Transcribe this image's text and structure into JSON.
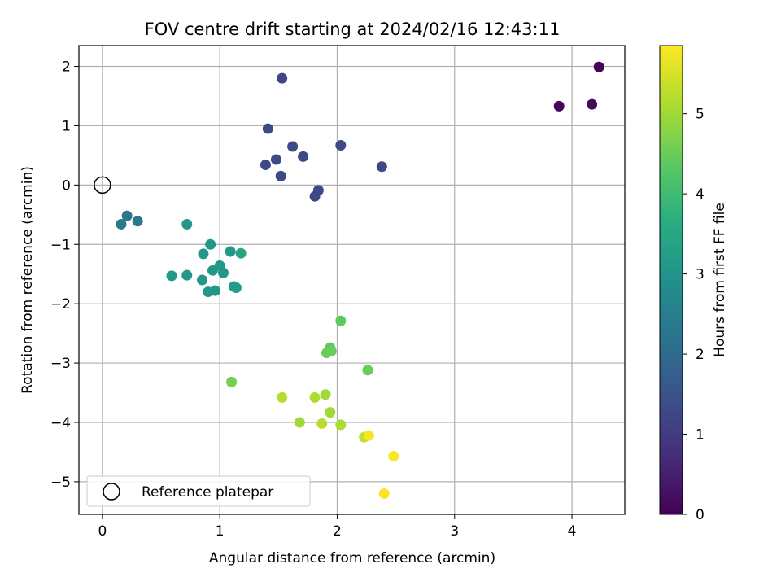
{
  "chart_data": {
    "type": "scatter",
    "title": "FOV centre drift starting at 2024/02/16 12:43:11",
    "xlabel": "Angular distance from reference (arcmin)",
    "ylabel": "Rotation from reference (arcmin)",
    "colorbar_label": "Hours from first FF file",
    "colormap": "viridis",
    "xlim": [
      -0.2,
      4.45
    ],
    "ylim": [
      -5.55,
      2.35
    ],
    "clim": [
      0,
      5.85
    ],
    "x_ticks": [
      0,
      1,
      2,
      3,
      4
    ],
    "y_ticks": [
      -5,
      -4,
      -3,
      -2,
      -1,
      0,
      1,
      2
    ],
    "colorbar_ticks": [
      0,
      1,
      2,
      3,
      4,
      5
    ],
    "grid": true,
    "legend_position": "lower-left",
    "reference": {
      "label": "Reference platepar",
      "x": 0,
      "y": 0
    },
    "points": [
      {
        "x": 4.23,
        "y": 1.99,
        "t": 0.05
      },
      {
        "x": 3.89,
        "y": 1.33,
        "t": 0.1
      },
      {
        "x": 4.17,
        "y": 1.36,
        "t": 0.15
      },
      {
        "x": 1.53,
        "y": 1.8,
        "t": 1.2
      },
      {
        "x": 1.41,
        "y": 0.95,
        "t": 1.3
      },
      {
        "x": 1.62,
        "y": 0.65,
        "t": 1.3
      },
      {
        "x": 2.03,
        "y": 0.67,
        "t": 1.3
      },
      {
        "x": 1.71,
        "y": 0.48,
        "t": 1.3
      },
      {
        "x": 1.48,
        "y": 0.43,
        "t": 1.3
      },
      {
        "x": 1.39,
        "y": 0.34,
        "t": 1.3
      },
      {
        "x": 2.38,
        "y": 0.31,
        "t": 1.3
      },
      {
        "x": 1.52,
        "y": 0.15,
        "t": 1.3
      },
      {
        "x": 1.84,
        "y": -0.09,
        "t": 1.3
      },
      {
        "x": 1.81,
        "y": -0.19,
        "t": 1.3
      },
      {
        "x": 0.21,
        "y": -0.52,
        "t": 2.3
      },
      {
        "x": 0.16,
        "y": -0.66,
        "t": 2.3
      },
      {
        "x": 0.3,
        "y": -0.61,
        "t": 2.3
      },
      {
        "x": 0.72,
        "y": -0.66,
        "t": 3.1
      },
      {
        "x": 0.92,
        "y": -1.0,
        "t": 3.1
      },
      {
        "x": 0.86,
        "y": -1.16,
        "t": 3.1
      },
      {
        "x": 1.09,
        "y": -1.12,
        "t": 3.1
      },
      {
        "x": 1.18,
        "y": -1.15,
        "t": 3.4
      },
      {
        "x": 1.0,
        "y": -1.36,
        "t": 3.1
      },
      {
        "x": 0.94,
        "y": -1.44,
        "t": 3.1
      },
      {
        "x": 1.03,
        "y": -1.48,
        "t": 3.1
      },
      {
        "x": 0.59,
        "y": -1.53,
        "t": 3.1
      },
      {
        "x": 0.72,
        "y": -1.52,
        "t": 3.1
      },
      {
        "x": 0.85,
        "y": -1.6,
        "t": 3.1
      },
      {
        "x": 1.12,
        "y": -1.71,
        "t": 3.2
      },
      {
        "x": 1.14,
        "y": -1.73,
        "t": 3.2
      },
      {
        "x": 0.9,
        "y": -1.8,
        "t": 3.1
      },
      {
        "x": 0.96,
        "y": -1.78,
        "t": 3.1
      },
      {
        "x": 2.03,
        "y": -2.29,
        "t": 4.4
      },
      {
        "x": 1.94,
        "y": -2.74,
        "t": 4.4
      },
      {
        "x": 1.91,
        "y": -2.83,
        "t": 4.5
      },
      {
        "x": 1.95,
        "y": -2.8,
        "t": 4.5
      },
      {
        "x": 2.26,
        "y": -3.12,
        "t": 4.5
      },
      {
        "x": 1.1,
        "y": -3.32,
        "t": 4.6
      },
      {
        "x": 1.53,
        "y": -3.58,
        "t": 5.2
      },
      {
        "x": 1.81,
        "y": -3.58,
        "t": 5.1
      },
      {
        "x": 1.9,
        "y": -3.53,
        "t": 5.0
      },
      {
        "x": 1.94,
        "y": -3.83,
        "t": 5.0
      },
      {
        "x": 1.68,
        "y": -4.0,
        "t": 5.0
      },
      {
        "x": 1.87,
        "y": -4.02,
        "t": 5.2
      },
      {
        "x": 2.03,
        "y": -4.04,
        "t": 5.1
      },
      {
        "x": 2.23,
        "y": -4.25,
        "t": 5.3
      },
      {
        "x": 2.27,
        "y": -4.22,
        "t": 5.8
      },
      {
        "x": 2.48,
        "y": -4.57,
        "t": 5.8
      },
      {
        "x": 2.4,
        "y": -5.2,
        "t": 5.8
      }
    ]
  }
}
